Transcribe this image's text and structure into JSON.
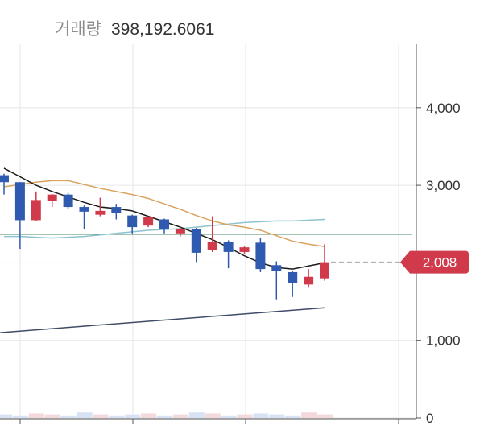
{
  "header": {
    "volume_label": "거래량",
    "volume_value": "398,192.6061"
  },
  "chart_data": {
    "type": "candlestick",
    "ylim": [
      0,
      4800
    ],
    "y_ticks": [
      "0",
      "1,000",
      "2,000",
      "3,000",
      "4,000"
    ],
    "current_price_label": "2,008",
    "current_price": 2008,
    "colors": {
      "up": "#d13a4b",
      "down": "#2f5aaf",
      "ma_short": "#1a1a1a",
      "ma_mid": "#d9a35f",
      "ma_long": "#8cc3d0",
      "trend": "#3f4b67",
      "level": "#4a8a66",
      "price_tag": "#d13a4b"
    },
    "candles": [
      {
        "o": 3130,
        "c": 3040,
        "h": 3150,
        "l": 2880
      },
      {
        "o": 3040,
        "c": 2550,
        "h": 3040,
        "l": 2180
      },
      {
        "o": 2550,
        "c": 2810,
        "h": 2920,
        "l": 2540
      },
      {
        "o": 2800,
        "c": 2880,
        "h": 2890,
        "l": 2720
      },
      {
        "o": 2880,
        "c": 2720,
        "h": 2900,
        "l": 2700
      },
      {
        "o": 2720,
        "c": 2660,
        "h": 2740,
        "l": 2440
      },
      {
        "o": 2620,
        "c": 2670,
        "h": 2840,
        "l": 2600
      },
      {
        "o": 2720,
        "c": 2640,
        "h": 2760,
        "l": 2560
      },
      {
        "o": 2610,
        "c": 2460,
        "h": 2620,
        "l": 2380
      },
      {
        "o": 2480,
        "c": 2590,
        "h": 2600,
        "l": 2460
      },
      {
        "o": 2560,
        "c": 2440,
        "h": 2570,
        "l": 2380
      },
      {
        "o": 2380,
        "c": 2440,
        "h": 2460,
        "l": 2340
      },
      {
        "o": 2440,
        "c": 2130,
        "h": 2450,
        "l": 2010
      },
      {
        "o": 2160,
        "c": 2270,
        "h": 2600,
        "l": 2140
      },
      {
        "o": 2270,
        "c": 2140,
        "h": 2290,
        "l": 1930
      },
      {
        "o": 2140,
        "c": 2200,
        "h": 2210,
        "l": 2120
      },
      {
        "o": 2260,
        "c": 1920,
        "h": 2320,
        "l": 1880
      },
      {
        "o": 1970,
        "c": 1890,
        "h": 2020,
        "l": 1530
      },
      {
        "o": 1880,
        "c": 1740,
        "h": 1890,
        "l": 1560
      },
      {
        "o": 1720,
        "c": 1820,
        "h": 1920,
        "l": 1680
      },
      {
        "o": 1800,
        "c": 2008,
        "h": 2240,
        "l": 1770
      }
    ],
    "ma_short": [
      3220,
      3110,
      3000,
      2920,
      2850,
      2780,
      2720,
      2700,
      2670,
      2600,
      2530,
      2460,
      2380,
      2300,
      2200,
      2090,
      2000,
      1940,
      1920,
      1960,
      2000
    ],
    "ma_mid": [
      2980,
      3010,
      3040,
      3060,
      3060,
      3010,
      2960,
      2920,
      2880,
      2830,
      2760,
      2690,
      2610,
      2540,
      2490,
      2460,
      2420,
      2350,
      2280,
      2240,
      2210
    ],
    "ma_long": [
      2340,
      2340,
      2330,
      2320,
      2330,
      2340,
      2360,
      2380,
      2400,
      2420,
      2430,
      2440,
      2460,
      2480,
      2500,
      2520,
      2530,
      2540,
      2540,
      2550,
      2560
    ],
    "trend_line": {
      "start": 1100,
      "end": 1420
    },
    "level_line": 2370,
    "volume": [
      2,
      1,
      3,
      2,
      1,
      4,
      2,
      1,
      2,
      3,
      1,
      2,
      4,
      3,
      1,
      2,
      3,
      2,
      1,
      4,
      2
    ]
  }
}
